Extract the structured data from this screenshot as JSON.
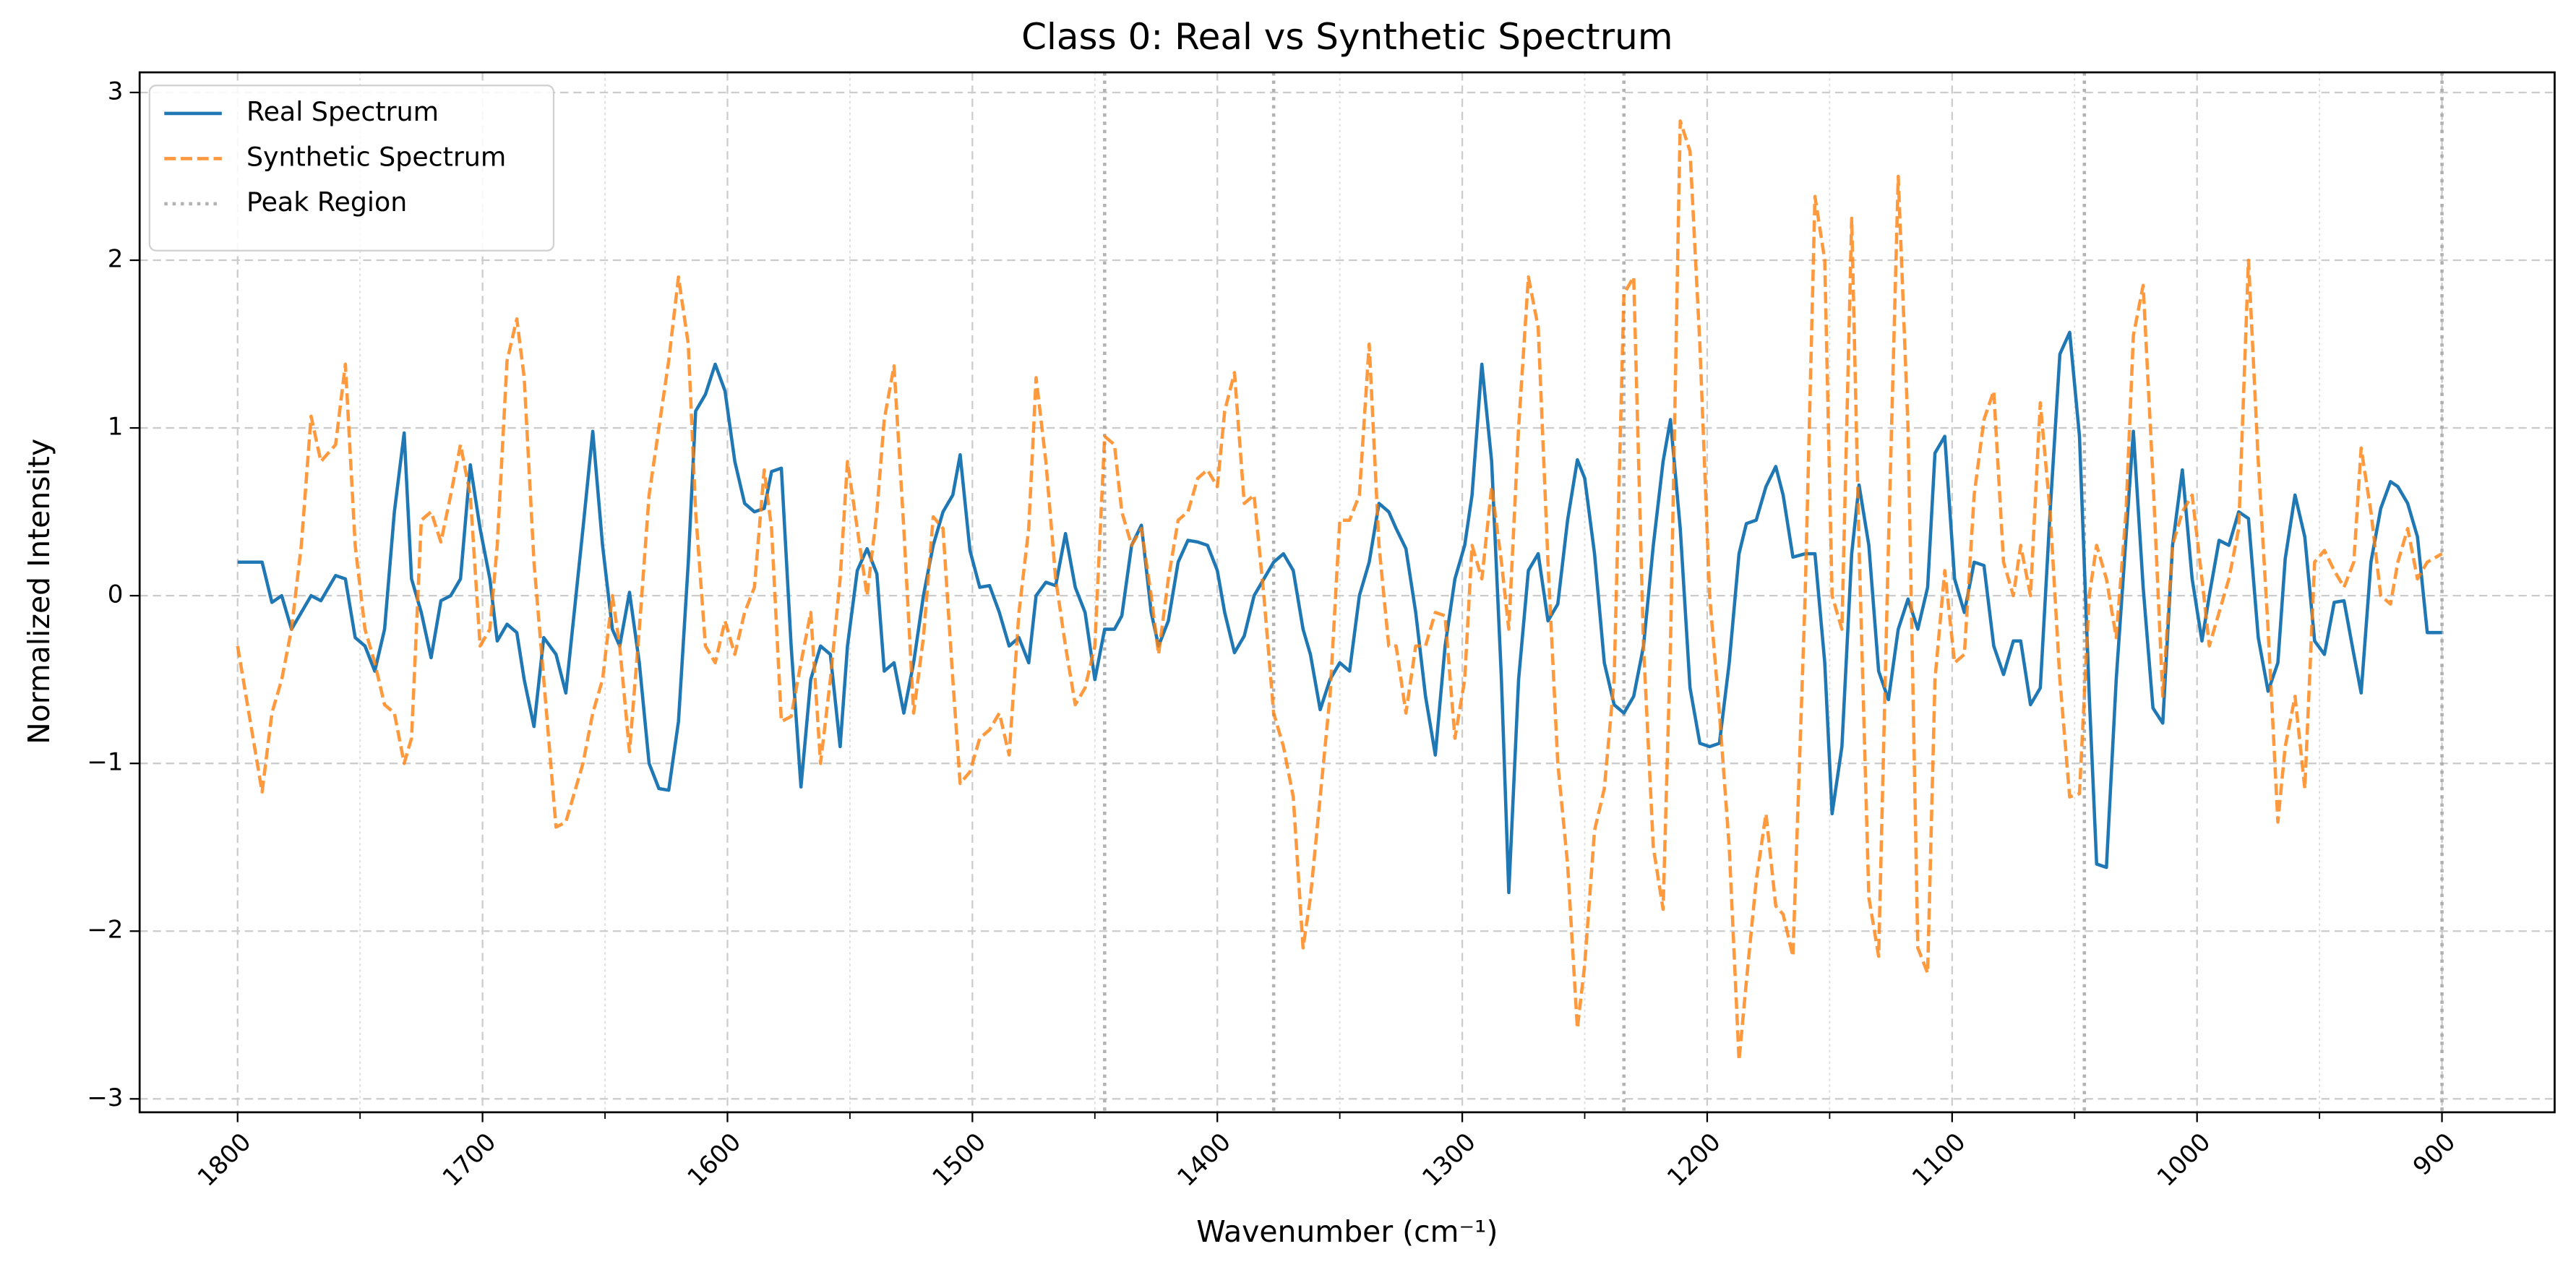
{
  "chart_data": {
    "type": "line",
    "title": "Class 0: Real vs Synthetic Spectrum",
    "xlabel": "Wavenumber (cm⁻¹)",
    "ylabel": "Normalized Intensity",
    "x": [
      1800,
      1790,
      1786,
      1782,
      1778,
      1774,
      1770,
      1766,
      1760,
      1756,
      1752,
      1748,
      1744,
      1740,
      1736,
      1732,
      1729,
      1725,
      1721,
      1717,
      1713,
      1709,
      1705,
      1701,
      1697,
      1694,
      1690,
      1686,
      1683,
      1679,
      1675,
      1670,
      1666,
      1659,
      1655,
      1651,
      1647,
      1644,
      1640,
      1636,
      1632,
      1628,
      1624,
      1620,
      1616,
      1613,
      1609,
      1605,
      1601,
      1597,
      1593,
      1589,
      1585,
      1582,
      1578,
      1574,
      1570,
      1566,
      1562,
      1558,
      1554,
      1551,
      1547,
      1543,
      1539,
      1536,
      1532,
      1528,
      1524,
      1520,
      1516,
      1512,
      1508,
      1505,
      1501,
      1497,
      1493,
      1489,
      1485,
      1481,
      1477,
      1474,
      1470,
      1466,
      1462,
      1458,
      1454,
      1450,
      1446,
      1442,
      1439,
      1435,
      1431,
      1427,
      1424,
      1420,
      1416,
      1412,
      1408,
      1404,
      1400,
      1397,
      1393,
      1389,
      1385,
      1381,
      1377,
      1373,
      1369,
      1365,
      1362,
      1358,
      1354,
      1350,
      1346,
      1342,
      1338,
      1334,
      1330,
      1327,
      1323,
      1319,
      1315,
      1311,
      1307,
      1303,
      1299,
      1296,
      1292,
      1288,
      1284,
      1281,
      1277,
      1273,
      1269,
      1265,
      1261,
      1257,
      1253,
      1250,
      1246,
      1242,
      1238,
      1234,
      1230,
      1226,
      1222,
      1218,
      1215,
      1211,
      1207,
      1203,
      1199,
      1195,
      1191,
      1187,
      1184,
      1180,
      1176,
      1172,
      1169,
      1165,
      1160,
      1156,
      1152,
      1149,
      1145,
      1141,
      1138,
      1134,
      1130,
      1126,
      1122,
      1118,
      1114,
      1110,
      1107,
      1103,
      1099,
      1095,
      1091,
      1087,
      1083,
      1079,
      1075,
      1072,
      1068,
      1064,
      1060,
      1056,
      1052,
      1048,
      1044,
      1041,
      1037,
      1033,
      1029,
      1026,
      1022,
      1018,
      1014,
      1010,
      1006,
      1002,
      998,
      995,
      991,
      987,
      983,
      979,
      975,
      971,
      967,
      964,
      960,
      956,
      952,
      948,
      944,
      940,
      936,
      933,
      929,
      925,
      921,
      918,
      914,
      910,
      906,
      900
    ],
    "series": [
      {
        "name": "Real Spectrum",
        "color": "#1f77b4",
        "linestyle": "solid",
        "values": [
          0.2,
          0.2,
          -0.04,
          0,
          -0.2,
          -0.1,
          0,
          -0.03,
          0.12,
          0.1,
          -0.25,
          -0.3,
          -0.45,
          -0.2,
          0.5,
          0.97,
          0.1,
          -0.1,
          -0.37,
          -0.03,
          0,
          0.1,
          0.78,
          0.4,
          0.1,
          -0.27,
          -0.17,
          -0.22,
          -0.5,
          -0.78,
          -0.25,
          -0.35,
          -0.58,
          0.4,
          0.98,
          0.3,
          -0.2,
          -0.3,
          0.02,
          -0.4,
          -1.0,
          -1.15,
          -1.16,
          -0.75,
          0.2,
          1.1,
          1.2,
          1.38,
          1.22,
          0.8,
          0.55,
          0.5,
          0.52,
          0.74,
          0.76,
          -0.3,
          -1.14,
          -0.5,
          -0.3,
          -0.35,
          -0.9,
          -0.3,
          0.15,
          0.28,
          0.13,
          -0.45,
          -0.4,
          -0.7,
          -0.4,
          0,
          0.3,
          0.5,
          0.6,
          0.84,
          0.27,
          0.05,
          0.06,
          -0.1,
          -0.3,
          -0.25,
          -0.4,
          0,
          0.08,
          0.06,
          0.37,
          0.05,
          -0.1,
          -0.5,
          -0.2,
          -0.2,
          -0.12,
          0.3,
          0.42,
          -0.1,
          -0.3,
          -0.15,
          0.2,
          0.33,
          0.32,
          0.3,
          0.15,
          -0.1,
          -0.34,
          -0.24,
          0,
          0.1,
          0.2,
          0.25,
          0.15,
          -0.2,
          -0.35,
          -0.68,
          -0.5,
          -0.4,
          -0.45,
          0,
          0.2,
          0.55,
          0.5,
          0.4,
          0.28,
          -0.1,
          -0.6,
          -0.95,
          -0.3,
          0.1,
          0.3,
          0.6,
          1.38,
          0.8,
          -0.5,
          -1.77,
          -0.5,
          0.15,
          0.25,
          -0.15,
          -0.05,
          0.45,
          0.81,
          0.7,
          0.25,
          -0.4,
          -0.65,
          -0.7,
          -0.6,
          -0.3,
          0.3,
          0.8,
          1.05,
          0.4,
          -0.55,
          -0.88,
          -0.9,
          -0.88,
          -0.4,
          0.25,
          0.43,
          0.45,
          0.65,
          0.77,
          0.6,
          0.23,
          0.25,
          0.25,
          -0.4,
          -1.3,
          -0.9,
          0.25,
          0.66,
          0.3,
          -0.45,
          -0.62,
          -0.2,
          -0.02,
          -0.2,
          0.05,
          0.85,
          0.95,
          0.1,
          -0.1,
          0.2,
          0.18,
          -0.3,
          -0.47,
          -0.27,
          -0.27,
          -0.65,
          -0.55,
          0.5,
          1.44,
          1.57,
          0.95,
          -0.6,
          -1.6,
          -1.62,
          -0.5,
          0.35,
          0.98,
          0.05,
          -0.67,
          -0.76,
          0.3,
          0.75,
          0.1,
          -0.27,
          0,
          0.33,
          0.3,
          0.5,
          0.46,
          -0.25,
          -0.57,
          -0.4,
          0.22,
          0.6,
          0.35,
          -0.27,
          -0.35,
          -0.04,
          -0.03,
          -0.35,
          -0.58,
          0.2,
          0.52,
          0.68,
          0.65,
          0.55,
          0.35,
          -0.22,
          -0.22
        ]
      },
      {
        "name": "Synthetic Spectrum",
        "color": "#ff7f0e",
        "linestyle": "dashed",
        "values": [
          -0.3,
          -1.17,
          -0.7,
          -0.5,
          -0.2,
          0.3,
          1.07,
          0.8,
          0.9,
          1.38,
          0.3,
          -0.2,
          -0.4,
          -0.65,
          -0.7,
          -1.0,
          -0.85,
          0.45,
          0.5,
          0.32,
          0.6,
          0.9,
          0.6,
          -0.3,
          -0.2,
          0.3,
          1.4,
          1.65,
          1.3,
          0.2,
          -0.5,
          -1.38,
          -1.35,
          -1.0,
          -0.7,
          -0.5,
          0,
          -0.3,
          -0.93,
          -0.2,
          0.6,
          1.0,
          1.4,
          1.9,
          1.5,
          0.5,
          -0.3,
          -0.4,
          -0.15,
          -0.35,
          -0.1,
          0.05,
          0.75,
          0.4,
          -0.75,
          -0.72,
          -0.4,
          -0.1,
          -1.0,
          -0.5,
          0.1,
          0.8,
          0.4,
          0,
          0.5,
          1.05,
          1.37,
          0.4,
          -0.7,
          -0.25,
          0.47,
          0.4,
          -0.5,
          -1.12,
          -1.05,
          -0.85,
          -0.8,
          -0.7,
          -0.95,
          -0.1,
          0.4,
          1.3,
          0.8,
          0.1,
          -0.3,
          -0.65,
          -0.55,
          -0.3,
          0.95,
          0.9,
          0.5,
          0.3,
          0.4,
          0,
          -0.35,
          0.1,
          0.45,
          0.5,
          0.7,
          0.75,
          0.65,
          1.1,
          1.33,
          0.55,
          0.6,
          0,
          -0.7,
          -0.9,
          -1.2,
          -2.1,
          -1.8,
          -1.2,
          -0.6,
          0.45,
          0.45,
          0.6,
          1.5,
          0.3,
          -0.3,
          -0.3,
          -0.7,
          -0.3,
          -0.3,
          -0.1,
          -0.12,
          -0.85,
          -0.5,
          0.3,
          0.1,
          0.65,
          0.2,
          -0.2,
          1.0,
          1.9,
          1.6,
          0.2,
          -1.0,
          -1.6,
          -2.58,
          -2.2,
          -1.4,
          -1.15,
          -0.5,
          1.8,
          1.9,
          -0.3,
          -1.5,
          -1.87,
          -0.3,
          2.83,
          2.65,
          1.5,
          0,
          -0.7,
          -1.5,
          -2.77,
          -2.3,
          -1.7,
          -1.3,
          -1.85,
          -1.9,
          -2.15,
          0,
          2.38,
          2.0,
          0,
          -0.2,
          2.25,
          0.3,
          -1.8,
          -2.15,
          0.3,
          2.5,
          1.0,
          -2.1,
          -2.25,
          -0.5,
          0.15,
          -0.4,
          -0.35,
          0.6,
          1.05,
          1.22,
          0.2,
          0,
          0.3,
          0,
          1.15,
          0.5,
          -0.5,
          -1.2,
          -1.18,
          0,
          0.3,
          0.1,
          -0.25,
          0.5,
          1.55,
          1.85,
          0.7,
          -0.6,
          0.3,
          0.5,
          0.6,
          0.1,
          -0.3,
          -0.1,
          0.1,
          0.4,
          2.0,
          0.8,
          -0.2,
          -1.35,
          -0.9,
          -0.6,
          -1.15,
          0.2,
          0.27,
          0.15,
          0.05,
          0.2,
          0.88,
          0.5,
          0,
          -0.05,
          0.2,
          0.4,
          0.1,
          0.2,
          0.25
        ]
      }
    ],
    "peak_region": {
      "name": "Peak Region",
      "color": "#aaaaaa",
      "x": [
        1446,
        1377,
        1234,
        1046,
        900
      ]
    },
    "xlim": [
      1840,
      854
    ],
    "xticks": [
      1800,
      1700,
      1600,
      1500,
      1400,
      1300,
      1200,
      1100,
      1000,
      900
    ],
    "xminorticks": [
      1750,
      1650,
      1550,
      1450,
      1350,
      1250,
      1150,
      1050,
      950
    ],
    "ylim": [
      -3.08,
      3.12
    ],
    "yticks": [
      {
        "value": -3,
        "label": "−3"
      },
      {
        "value": -2,
        "label": "−2"
      },
      {
        "value": -1,
        "label": "−1"
      },
      0,
      1,
      2,
      3
    ],
    "grid": true,
    "legend": "upper left"
  }
}
